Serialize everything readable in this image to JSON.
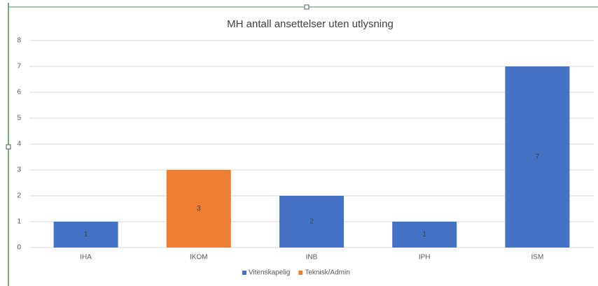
{
  "chart_data": {
    "type": "bar",
    "stacked": true,
    "title": "MH antall ansettelser uten utlysning",
    "categories": [
      "IHA",
      "IKOM",
      "INB",
      "IPH",
      "ISM"
    ],
    "series": [
      {
        "name": "Vitenskapelig",
        "color": "#4472c4",
        "values": [
          1,
          null,
          2,
          1,
          7
        ]
      },
      {
        "name": "Teknisk/Admin",
        "color": "#ed7d31",
        "values": [
          null,
          3,
          null,
          null,
          null
        ]
      }
    ],
    "ylim": [
      0,
      8
    ],
    "yticks": [
      0,
      1,
      2,
      3,
      4,
      5,
      6,
      7,
      8
    ],
    "grid": true,
    "legend": "bottom",
    "data_labels": true
  }
}
